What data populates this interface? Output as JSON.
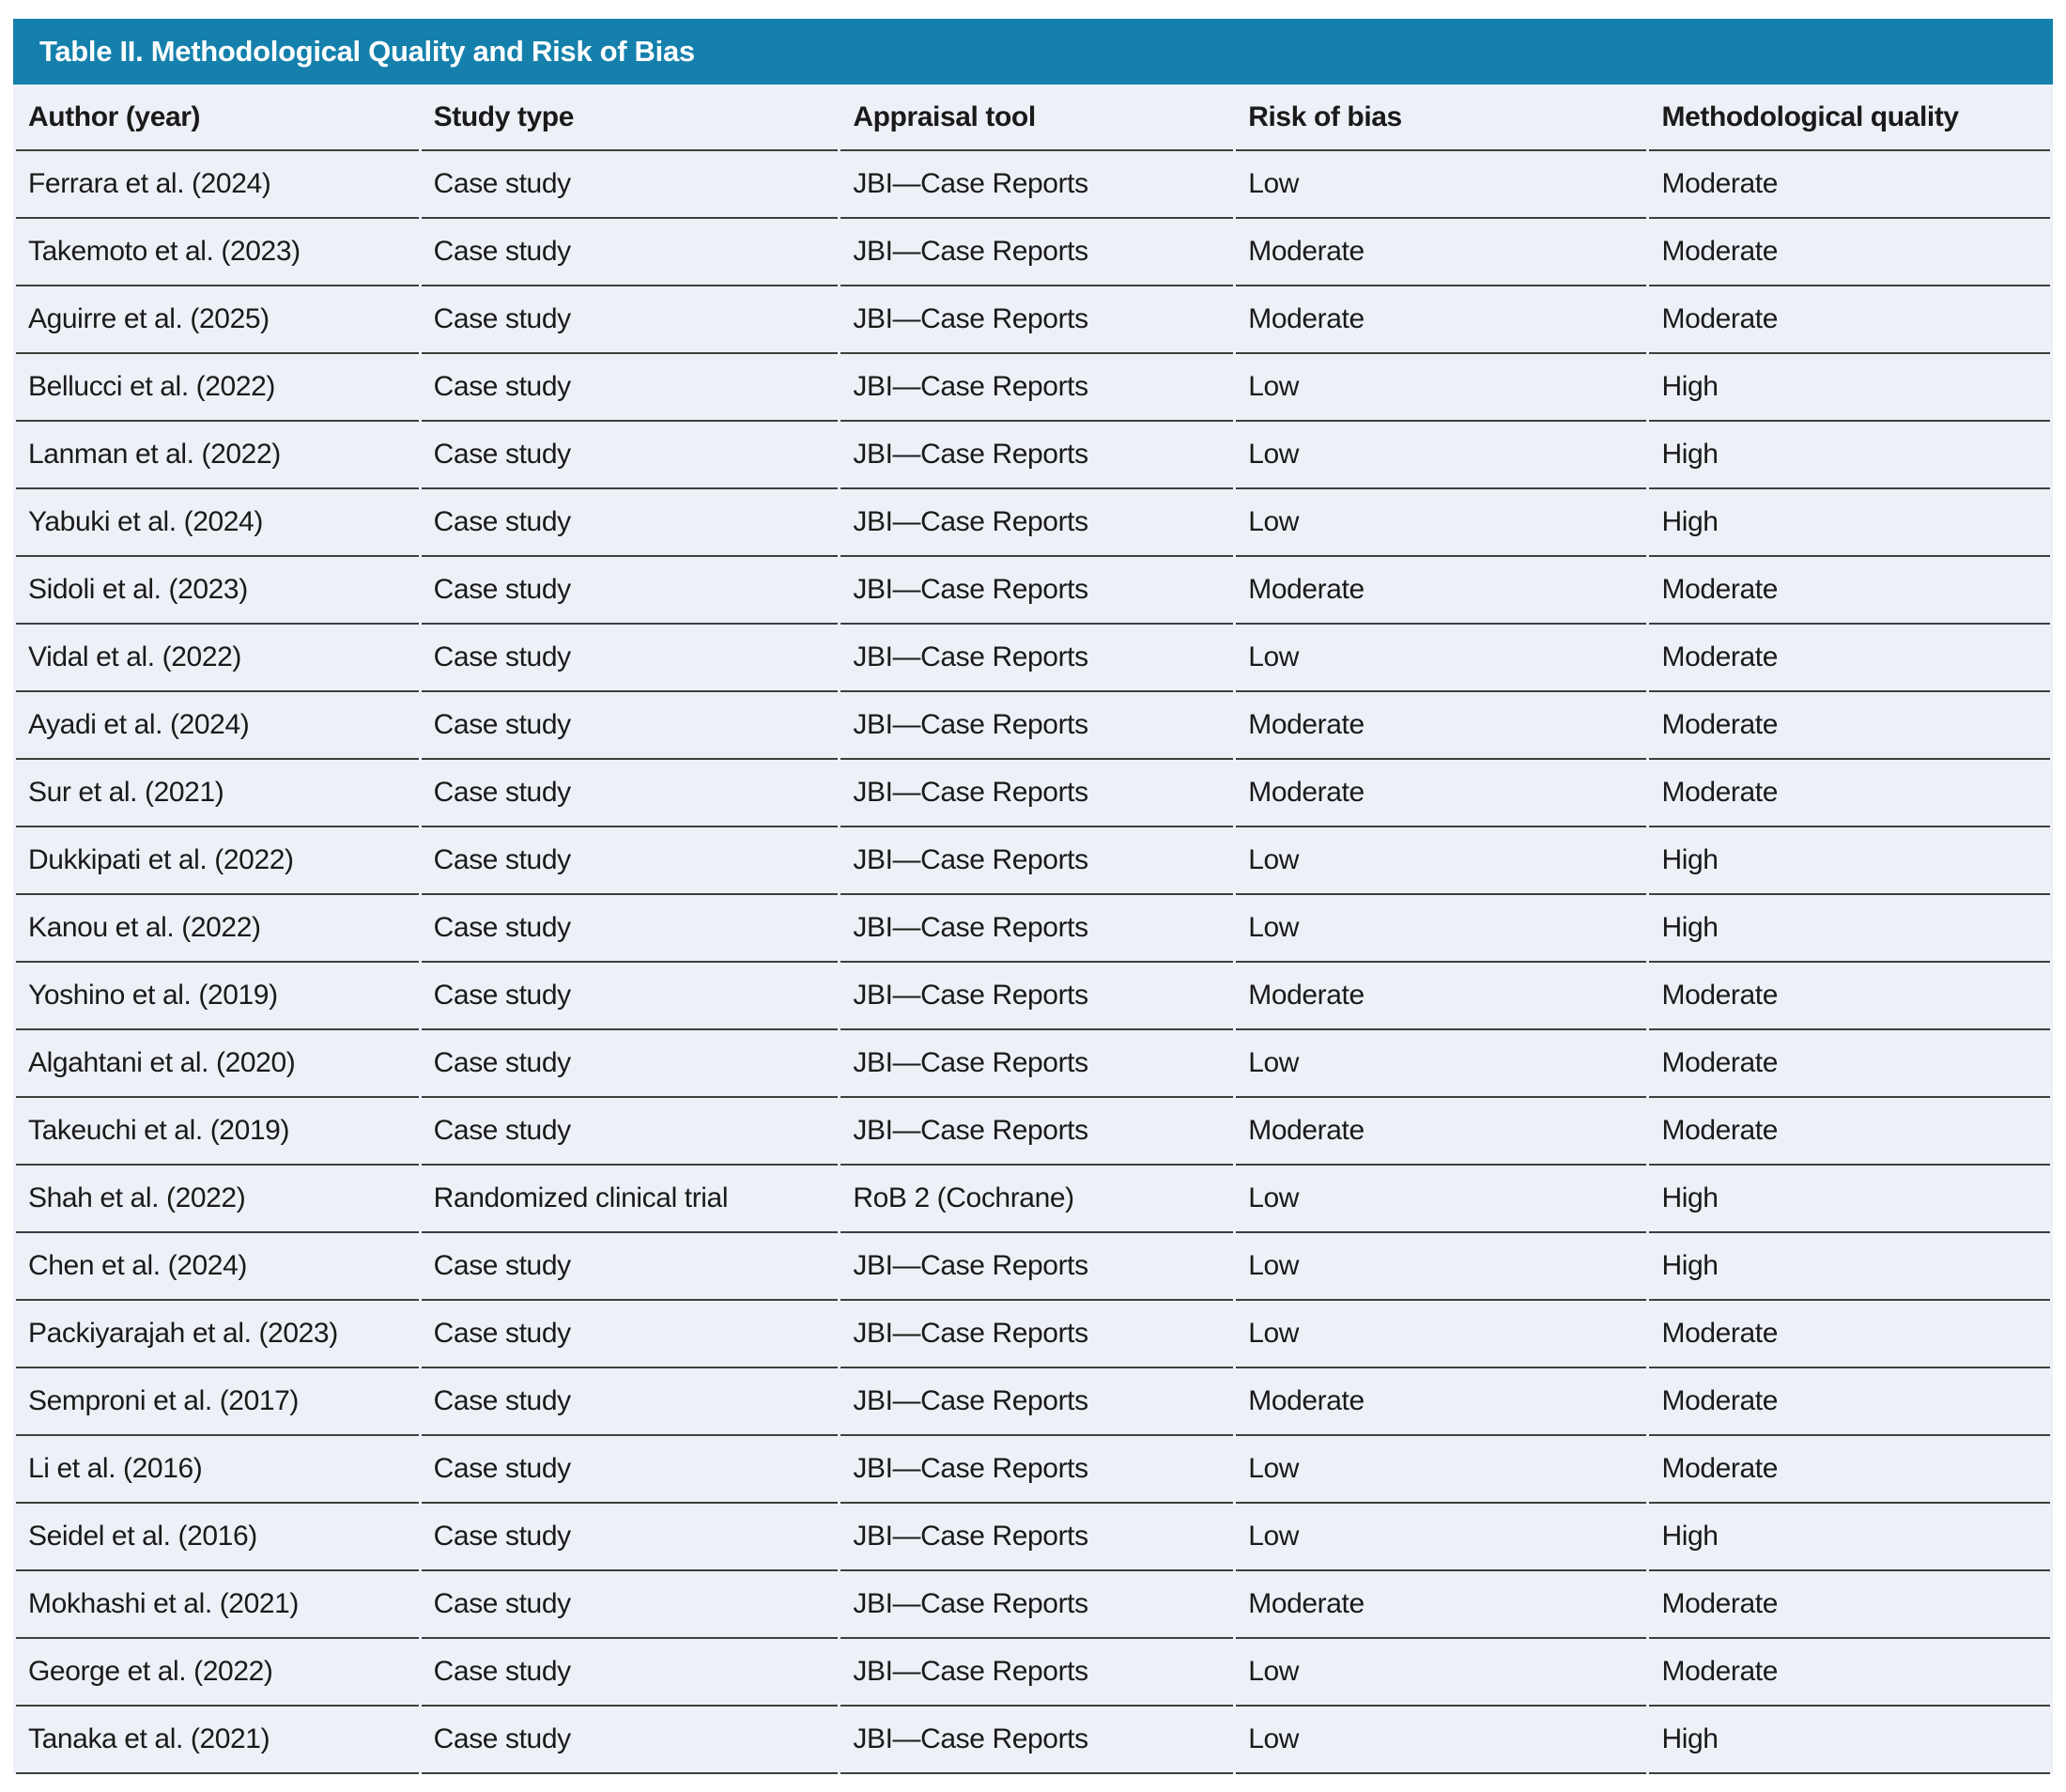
{
  "colors": {
    "title_bar_bg": "#1580ac",
    "title_text": "#ffffff",
    "row_bg": "#edf0f7",
    "divider": "#3e3e3e",
    "body_text": "#1a1a1a"
  },
  "table": {
    "title": "Table II. Methodological Quality and Risk of Bias",
    "columns": [
      "Author (year)",
      "Study type",
      "Appraisal tool",
      "Risk of bias",
      "Methodological quality"
    ],
    "rows": [
      [
        "Ferrara et al. (2024)",
        "Case study",
        "JBI—Case Reports",
        "Low",
        "Moderate"
      ],
      [
        "Takemoto et al. (2023)",
        "Case study",
        "JBI—Case Reports",
        "Moderate",
        "Moderate"
      ],
      [
        "Aguirre et al. (2025)",
        "Case study",
        "JBI—Case Reports",
        "Moderate",
        "Moderate"
      ],
      [
        "Bellucci et al. (2022)",
        "Case study",
        "JBI—Case Reports",
        "Low",
        "High"
      ],
      [
        "Lanman et al. (2022)",
        "Case study",
        "JBI—Case Reports",
        "Low",
        "High"
      ],
      [
        "Yabuki et al. (2024)",
        "Case study",
        "JBI—Case Reports",
        "Low",
        "High"
      ],
      [
        "Sidoli et al. (2023)",
        "Case study",
        "JBI—Case Reports",
        "Moderate",
        "Moderate"
      ],
      [
        "Vidal et al. (2022)",
        "Case study",
        "JBI—Case Reports",
        "Low",
        "Moderate"
      ],
      [
        "Ayadi et al. (2024)",
        "Case study",
        "JBI—Case Reports",
        "Moderate",
        "Moderate"
      ],
      [
        "Sur et al. (2021)",
        "Case study",
        "JBI—Case Reports",
        "Moderate",
        "Moderate"
      ],
      [
        "Dukkipati et al. (2022)",
        "Case study",
        "JBI—Case Reports",
        "Low",
        "High"
      ],
      [
        "Kanou et al. (2022)",
        "Case study",
        "JBI—Case Reports",
        "Low",
        "High"
      ],
      [
        "Yoshino et al. (2019)",
        "Case study",
        "JBI—Case Reports",
        "Moderate",
        "Moderate"
      ],
      [
        "Algahtani et al. (2020)",
        "Case study",
        "JBI—Case Reports",
        "Low",
        "Moderate"
      ],
      [
        "Takeuchi et al. (2019)",
        "Case study",
        "JBI—Case Reports",
        "Moderate",
        "Moderate"
      ],
      [
        "Shah et al. (2022)",
        "Randomized clinical trial",
        "RoB 2 (Cochrane)",
        "Low",
        "High"
      ],
      [
        "Chen et al. (2024)",
        "Case study",
        "JBI—Case Reports",
        "Low",
        "High"
      ],
      [
        "Packiyarajah et al. (2023)",
        "Case study",
        "JBI—Case Reports",
        "Low",
        "Moderate"
      ],
      [
        "Semproni et al. (2017)",
        "Case study",
        "JBI—Case Reports",
        "Moderate",
        "Moderate"
      ],
      [
        "Li et al. (2016)",
        "Case study",
        "JBI—Case Reports",
        "Low",
        "Moderate"
      ],
      [
        "Seidel et al. (2016)",
        "Case study",
        "JBI—Case Reports",
        "Low",
        "High"
      ],
      [
        "Mokhashi et al. (2021)",
        "Case study",
        "JBI—Case Reports",
        "Moderate",
        "Moderate"
      ],
      [
        "George et al. (2022)",
        "Case study",
        "JBI—Case Reports",
        "Low",
        "Moderate"
      ],
      [
        "Tanaka et al. (2021)",
        "Case study",
        "JBI—Case Reports",
        "Low",
        "High"
      ]
    ],
    "column_keys": [
      "author",
      "study-type",
      "appraisal-tool",
      "risk-of-bias",
      "methodological-quality"
    ]
  }
}
